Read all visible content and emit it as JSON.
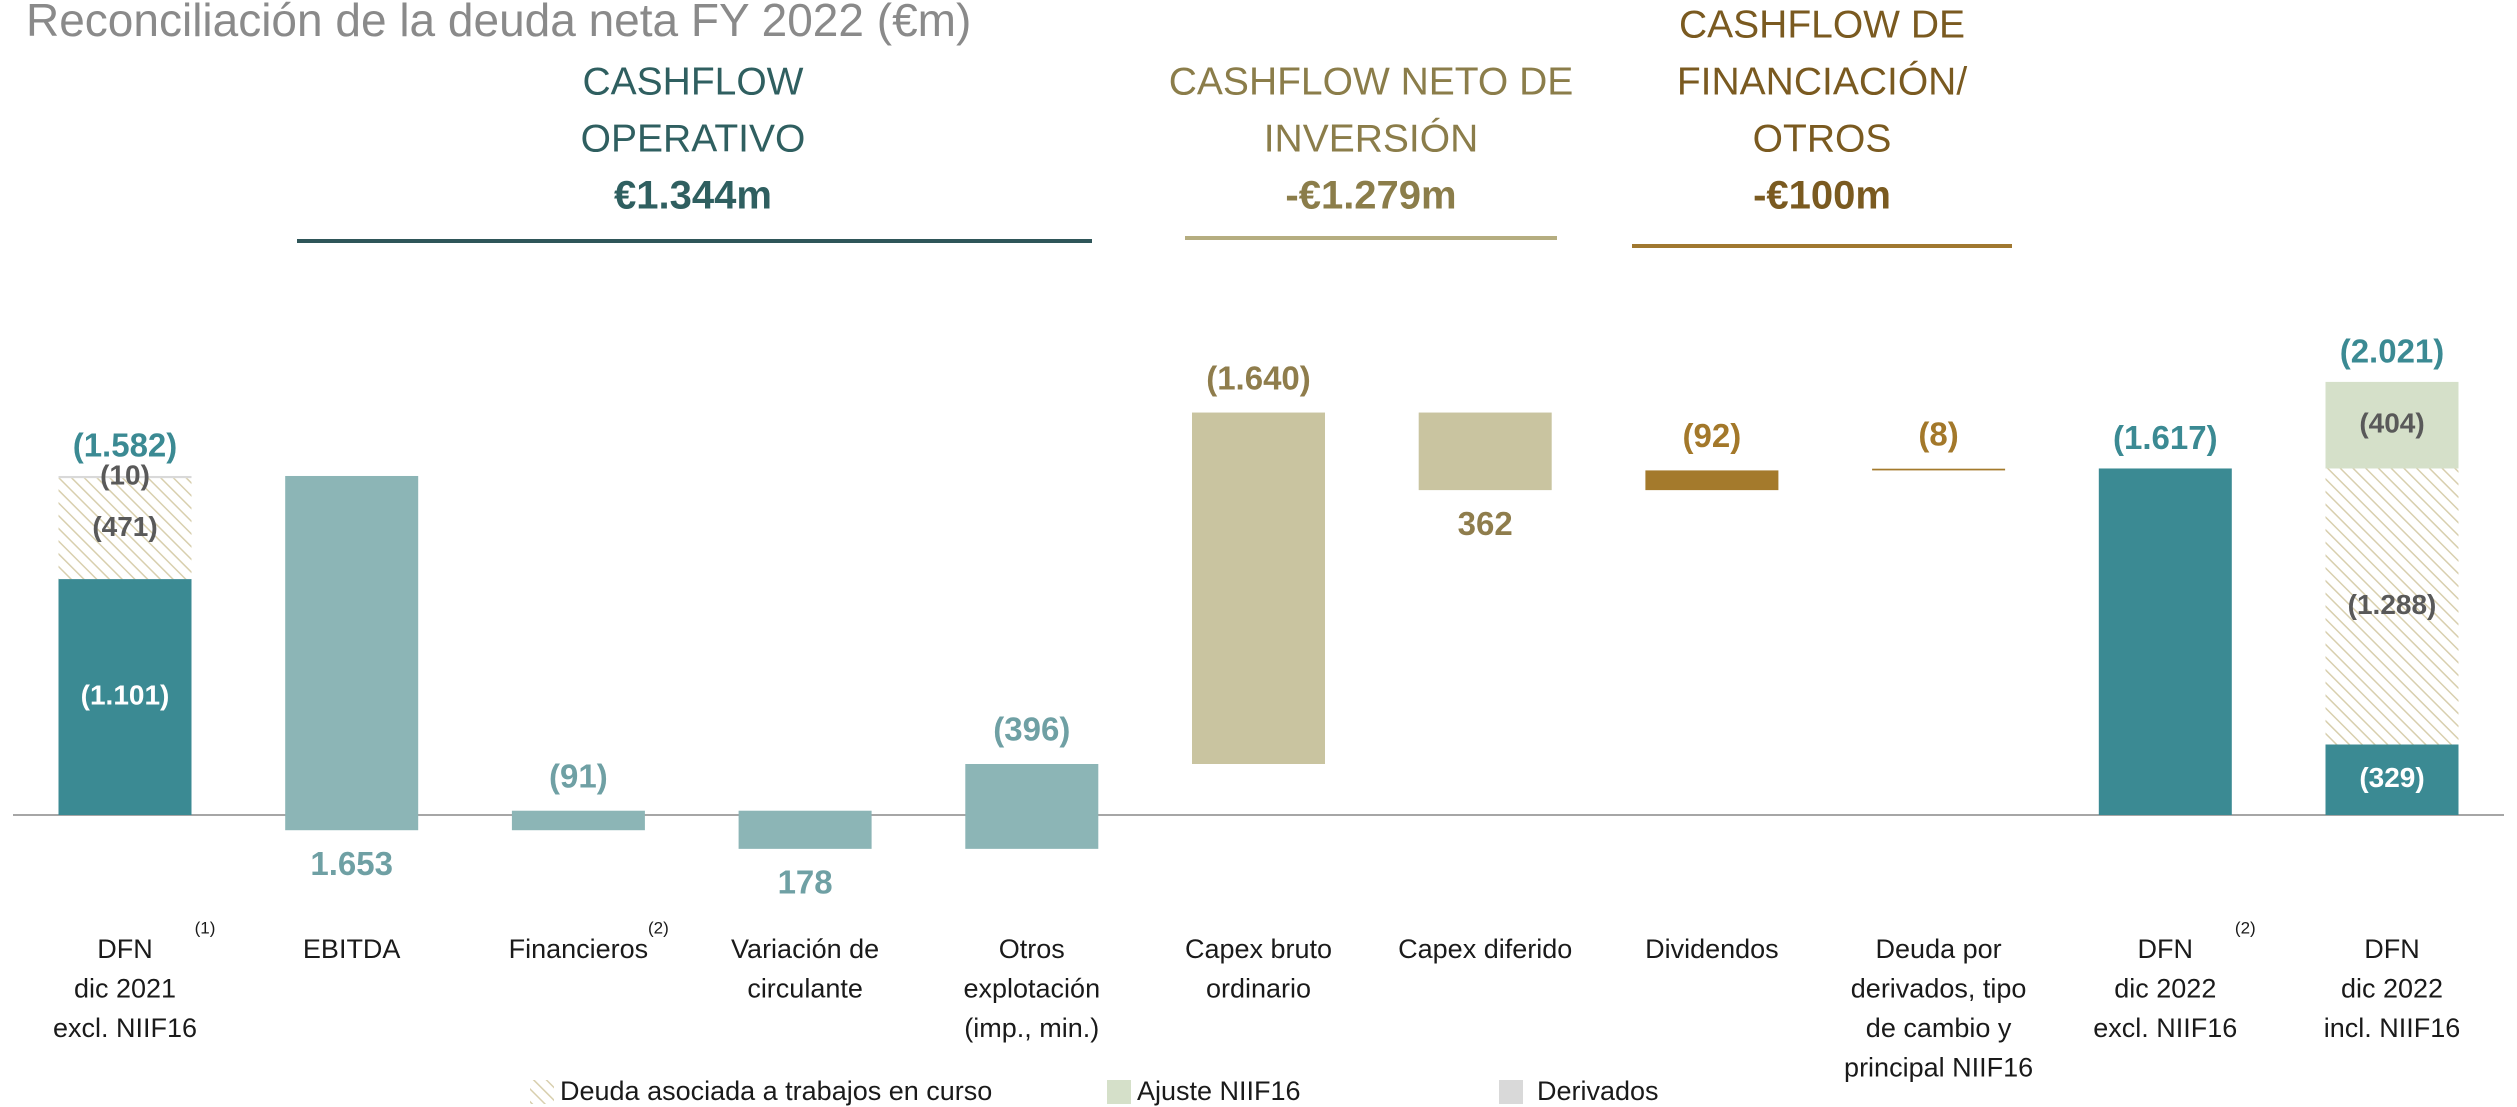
{
  "chart_data": {
    "type": "waterfall",
    "title": "Reconciliación de la deuda neta FY 2022 (€m)",
    "sections": [
      {
        "title_lines": [
          "CASHFLOW",
          "OPERATIVO"
        ],
        "total": "€1.344m",
        "color": "#2f5f60",
        "line_color": "#2f5659"
      },
      {
        "title_lines": [
          "CASHFLOW NETO DE",
          "INVERSIÓN"
        ],
        "total": "-€1.279m",
        "color": "#8b7d4a",
        "line_color": "#b5ad80"
      },
      {
        "title_lines": [
          "CASHFLOW DE",
          "FINANCIACIÓN/",
          "OTROS"
        ],
        "total": "-€100m",
        "color": "#7a5a20",
        "line_color": "#a07830"
      }
    ],
    "categories": [
      [
        "DFN",
        "dic 2021",
        "excl. NIIF16"
      ],
      [
        "EBITDA"
      ],
      [
        "Financieros"
      ],
      [
        "Variación de",
        "circulante"
      ],
      [
        "Otros",
        "explotación",
        "(imp., min.)"
      ],
      [
        "Capex bruto",
        "ordinario"
      ],
      [
        "Capex diferido"
      ],
      [
        "Dividendos"
      ],
      [
        "Deuda por",
        "derivados, tipo",
        "de cambio y",
        "principal NIIF16"
      ],
      [
        "DFN",
        "dic 2022",
        "excl. NIIF16"
      ],
      [
        "DFN",
        "dic 2022",
        "incl. NIIF16"
      ]
    ],
    "footnotes": [
      "(1)",
      null,
      "(2)",
      null,
      null,
      null,
      null,
      null,
      null,
      "(2)",
      null
    ],
    "measure": [
      "total",
      "relative",
      "relative",
      "relative",
      "relative",
      "relative",
      "relative",
      "relative",
      "relative",
      "total",
      "total"
    ],
    "values": [
      1582,
      -1653,
      91,
      -178,
      396,
      1640,
      -362,
      92,
      8,
      1617,
      2021
    ],
    "value_labels": [
      "(1.582)",
      "1.653",
      "(91)",
      "178",
      "(396)",
      "(1.640)",
      "362",
      "(92)",
      "(8)",
      "(1.617)",
      "(2.021)"
    ],
    "colors": [
      null,
      "#8cb5b6",
      "#8cb5b6",
      "#8cb5b6",
      "#8cb5b6",
      "#c9c4a0",
      "#c9c4a0",
      "#a47a2c",
      "#a47a2c",
      "#3b8a93",
      null
    ],
    "label_colors": [
      "#3b8a93",
      "#6fa0a4",
      "#6fa0a4",
      "#6fa0a4",
      "#6fa0a4",
      "#8f7d4c",
      "#8f7d4c",
      "#a3782a",
      "#a3782a",
      "#3b8a93",
      "#3b8a93"
    ],
    "series": [
      {
        "color": "#3b8a93",
        "label_color": "#ffffff",
        "values": [
          1101,
          null,
          null,
          null,
          null,
          null,
          null,
          null,
          null,
          null,
          329
        ],
        "value_labels": [
          "(1.101)",
          null,
          null,
          null,
          null,
          null,
          null,
          null,
          null,
          null,
          "(329)"
        ]
      },
      {
        "name": "Deuda asociada a trabajos en curso",
        "color": "#d8cfae",
        "pattern": "hatch",
        "label_color": "#595959",
        "values": [
          471,
          null,
          null,
          null,
          null,
          null,
          null,
          null,
          null,
          null,
          1288
        ],
        "value_labels": [
          "(471)",
          null,
          null,
          null,
          null,
          null,
          null,
          null,
          null,
          null,
          "(1.288)"
        ]
      },
      {
        "name": "Ajuste NIIF16",
        "color": "#d5e0c9",
        "label_color": "#595959",
        "values": [
          null,
          null,
          null,
          null,
          null,
          null,
          null,
          null,
          null,
          null,
          404
        ],
        "value_labels": [
          null,
          null,
          null,
          null,
          null,
          null,
          null,
          null,
          null,
          null,
          "(404)"
        ]
      },
      {
        "name": "Derivados",
        "color": "#d9d9d9",
        "label_color": "#595959",
        "values": [
          10,
          null,
          null,
          null,
          null,
          null,
          null,
          null,
          null,
          null,
          null
        ],
        "value_labels": [
          "(10)",
          null,
          null,
          null,
          null,
          null,
          null,
          null,
          null,
          null,
          null
        ]
      }
    ]
  }
}
